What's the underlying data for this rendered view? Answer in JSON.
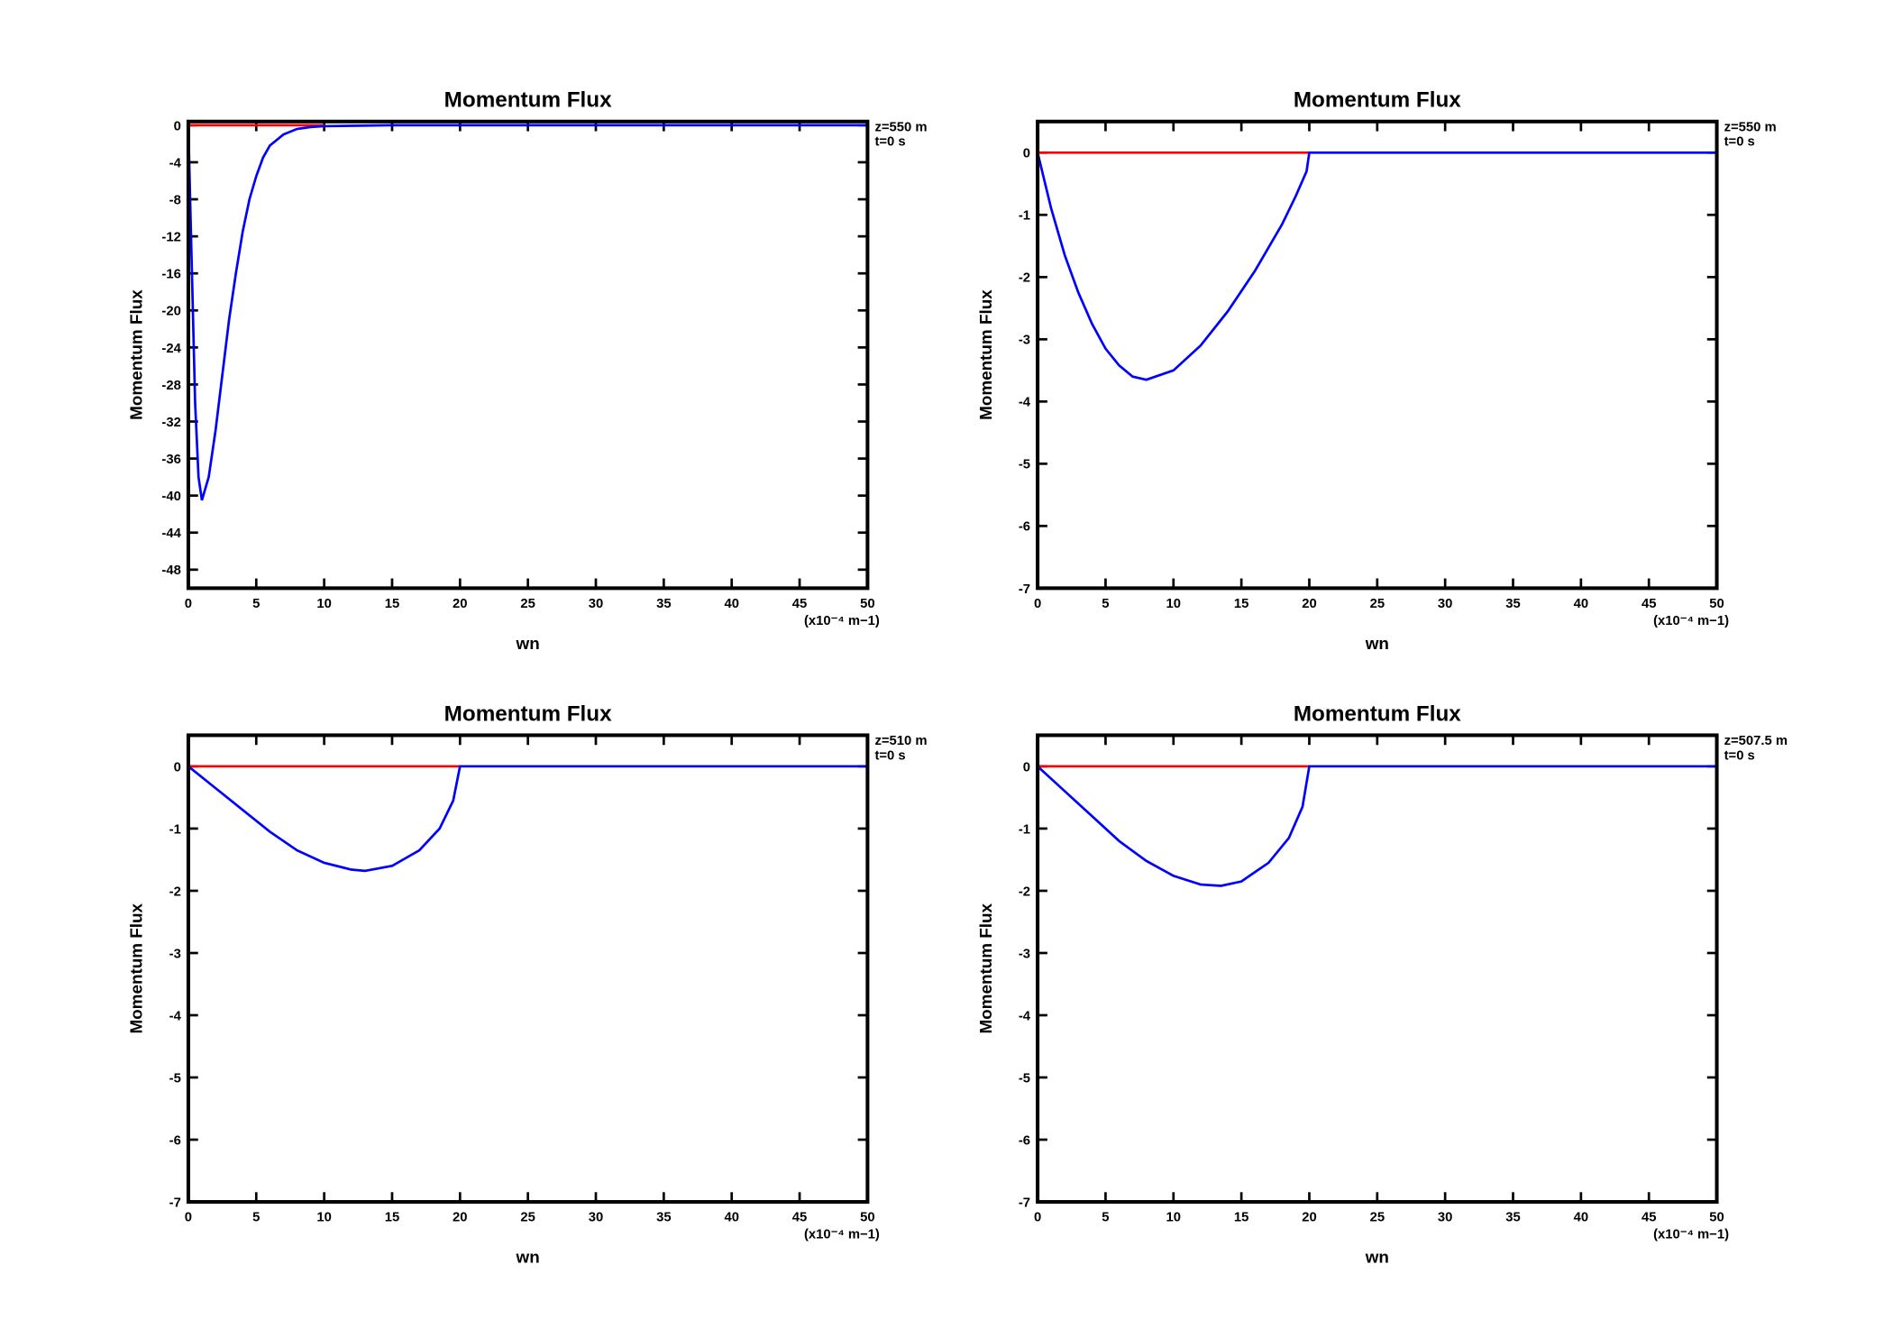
{
  "chart_data": [
    {
      "type": "line",
      "title": "Momentum Flux",
      "ylabel": "Momentum Flux",
      "xlabel": "wn",
      "xlabel_note": "(x10⁻⁴ m−1)",
      "annotations": [
        "z=550 m",
        "t=0 s"
      ],
      "xlim": [
        0,
        50
      ],
      "xticks": [
        0,
        5,
        10,
        15,
        20,
        25,
        30,
        35,
        40,
        45,
        50
      ],
      "ylim": [
        -50,
        0.4
      ],
      "yticks": [
        0,
        -4,
        -8,
        -12,
        -16,
        -20,
        -24,
        -28,
        -32,
        -36,
        -40,
        -44,
        -48
      ],
      "series": [
        {
          "color": "#ff0000",
          "x": [
            0,
            10
          ],
          "values": [
            0,
            0
          ]
        },
        {
          "color": "#0000ff",
          "x": [
            0,
            0.25,
            0.5,
            0.75,
            1,
            1.5,
            2,
            2.5,
            3,
            3.5,
            4,
            4.5,
            5,
            5.5,
            6,
            7,
            8,
            9,
            10,
            15,
            20,
            30,
            40,
            50
          ],
          "values": [
            0,
            -15,
            -30,
            -38,
            -40.5,
            -38,
            -33,
            -27,
            -21,
            -16,
            -11.5,
            -8,
            -5.5,
            -3.5,
            -2.2,
            -1,
            -0.4,
            -0.2,
            -0.1,
            0,
            0,
            0,
            0,
            0
          ]
        }
      ]
    },
    {
      "type": "line",
      "title": "Momentum Flux",
      "ylabel": "Momentum Flux",
      "xlabel": "wn",
      "xlabel_note": "(x10⁻⁴ m−1)",
      "annotations": [
        "z=550 m",
        "t=0 s"
      ],
      "xlim": [
        0,
        50
      ],
      "xticks": [
        0,
        5,
        10,
        15,
        20,
        25,
        30,
        35,
        40,
        45,
        50
      ],
      "ylim": [
        -7,
        0.5
      ],
      "yticks": [
        0,
        -1,
        -2,
        -3,
        -4,
        -5,
        -6,
        -7
      ],
      "series": [
        {
          "color": "#ff0000",
          "x": [
            0,
            20
          ],
          "values": [
            0,
            0
          ]
        },
        {
          "color": "#0000ff",
          "x": [
            0,
            1,
            2,
            3,
            4,
            5,
            6,
            7,
            8,
            10,
            12,
            14,
            16,
            18,
            19,
            19.8,
            20,
            50
          ],
          "values": [
            0,
            -0.9,
            -1.65,
            -2.25,
            -2.75,
            -3.15,
            -3.42,
            -3.6,
            -3.65,
            -3.5,
            -3.1,
            -2.55,
            -1.9,
            -1.15,
            -0.7,
            -0.3,
            0,
            0
          ]
        }
      ]
    },
    {
      "type": "line",
      "title": "Momentum Flux",
      "ylabel": "Momentum Flux",
      "xlabel": "wn",
      "xlabel_note": "(x10⁻⁴ m−1)",
      "annotations": [
        "z=510 m",
        "t=0 s"
      ],
      "xlim": [
        0,
        50
      ],
      "xticks": [
        0,
        5,
        10,
        15,
        20,
        25,
        30,
        35,
        40,
        45,
        50
      ],
      "ylim": [
        -7,
        0.5
      ],
      "yticks": [
        0,
        -1,
        -2,
        -3,
        -4,
        -5,
        -6,
        -7
      ],
      "series": [
        {
          "color": "#ff0000",
          "x": [
            0,
            20
          ],
          "values": [
            0,
            0
          ]
        },
        {
          "color": "#0000ff",
          "x": [
            0,
            2,
            4,
            6,
            8,
            10,
            12,
            13,
            15,
            17,
            18.5,
            19.5,
            20,
            50
          ],
          "values": [
            0,
            -0.35,
            -0.7,
            -1.05,
            -1.35,
            -1.55,
            -1.66,
            -1.68,
            -1.6,
            -1.35,
            -1.0,
            -0.55,
            0,
            0
          ]
        }
      ]
    },
    {
      "type": "line",
      "title": "Momentum Flux",
      "ylabel": "Momentum Flux",
      "xlabel": "wn",
      "xlabel_note": "(x10⁻⁴ m−1)",
      "annotations": [
        "z=507.5 m",
        "t=0 s"
      ],
      "xlim": [
        0,
        50
      ],
      "xticks": [
        0,
        5,
        10,
        15,
        20,
        25,
        30,
        35,
        40,
        45,
        50
      ],
      "ylim": [
        -7,
        0.5
      ],
      "yticks": [
        0,
        -1,
        -2,
        -3,
        -4,
        -5,
        -6,
        -7
      ],
      "series": [
        {
          "color": "#ff0000",
          "x": [
            0,
            20
          ],
          "values": [
            0,
            0
          ]
        },
        {
          "color": "#0000ff",
          "x": [
            0,
            2,
            4,
            6,
            8,
            10,
            12,
            13.5,
            15,
            17,
            18.5,
            19.5,
            20,
            50
          ],
          "values": [
            0,
            -0.4,
            -0.8,
            -1.2,
            -1.52,
            -1.76,
            -1.9,
            -1.92,
            -1.85,
            -1.55,
            -1.15,
            -0.65,
            0,
            0
          ]
        }
      ]
    }
  ]
}
